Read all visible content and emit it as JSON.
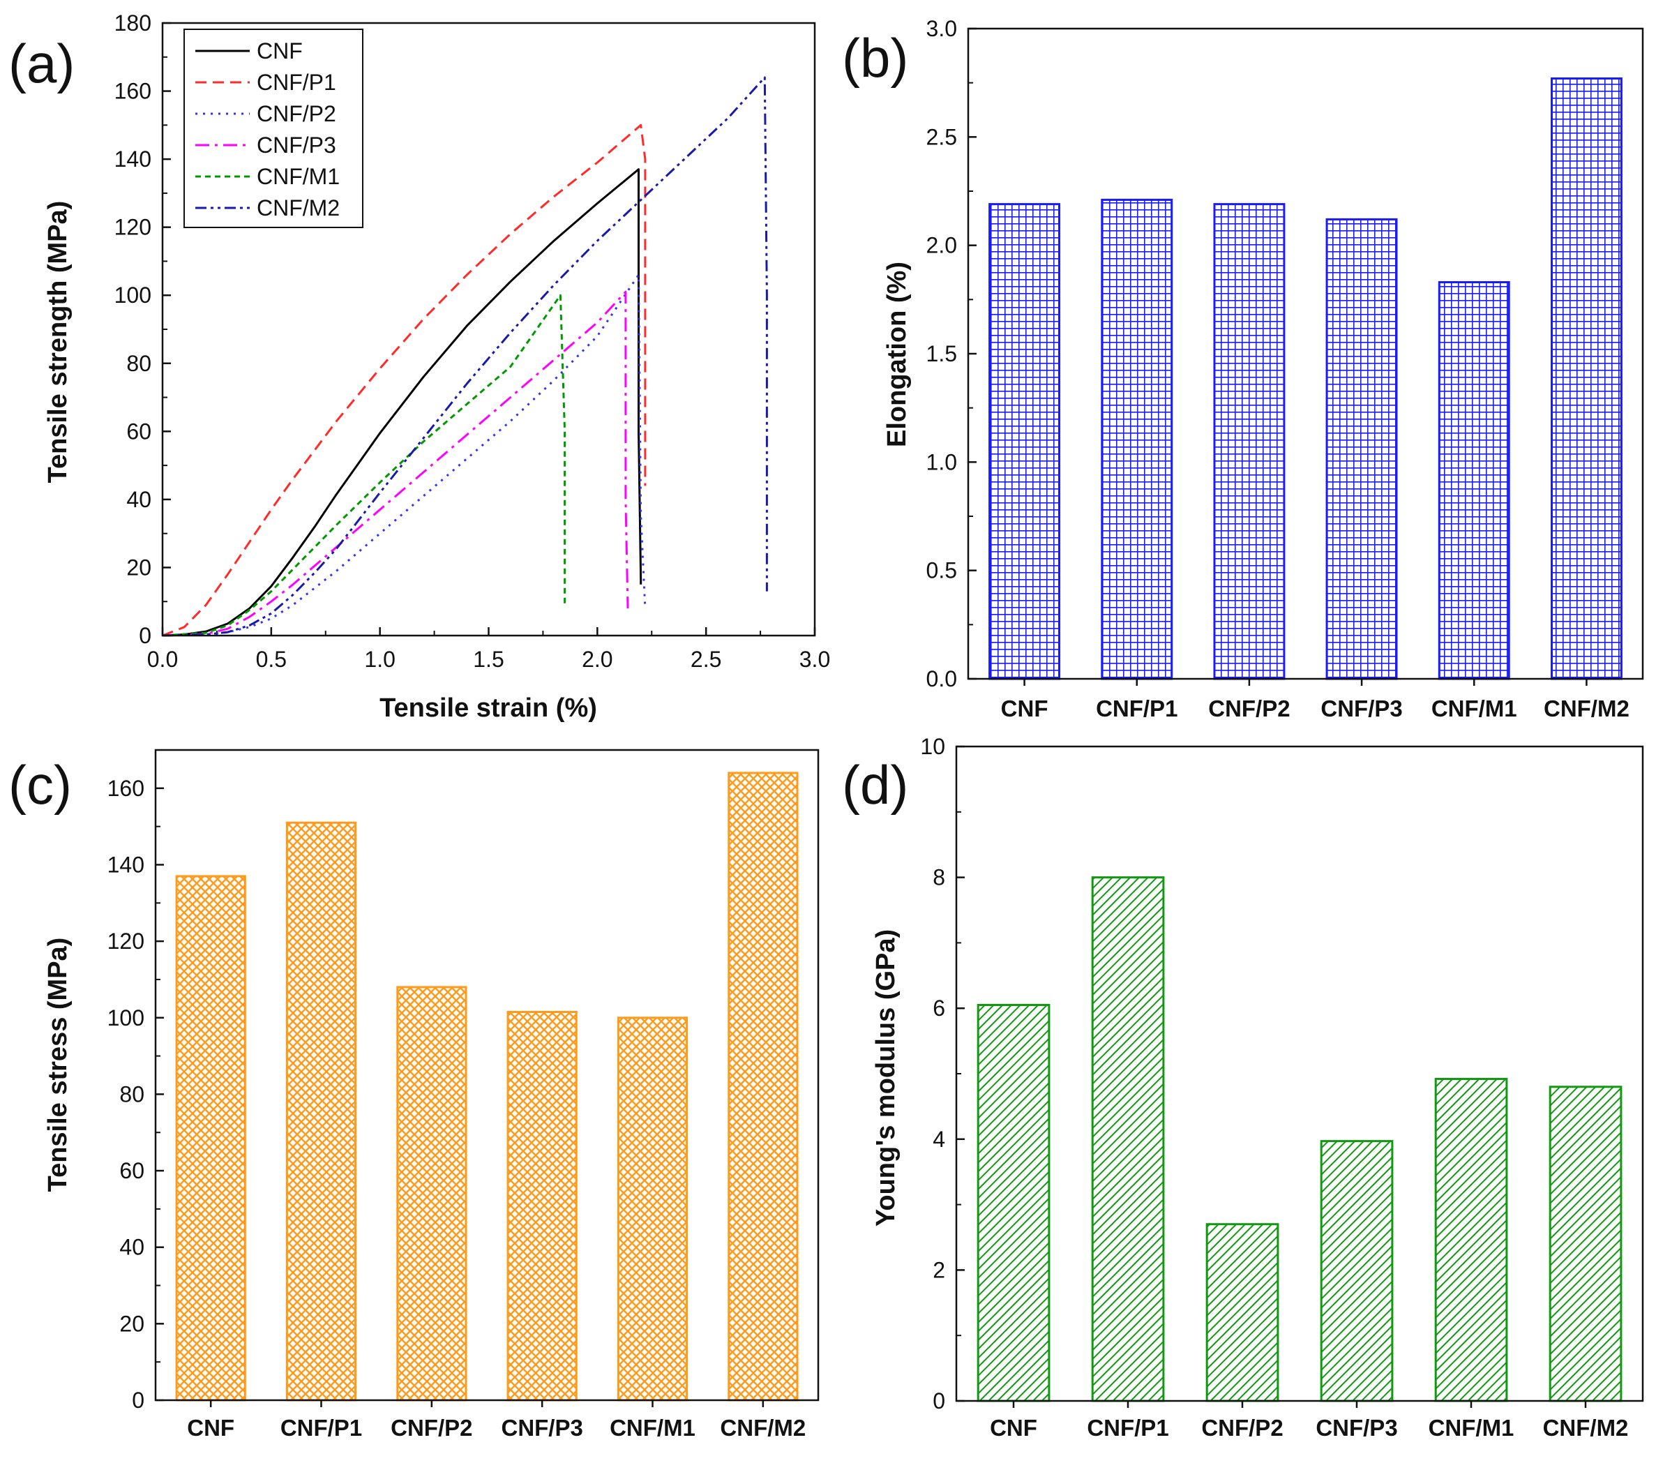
{
  "chart_data": [
    {
      "panel": "(a)",
      "type": "line",
      "xlabel": "Tensile strain (%)",
      "ylabel": "Tensile strength (MPa)",
      "xlim": [
        0,
        3.0
      ],
      "ylim": [
        0,
        180
      ],
      "xticks": [
        "0.0",
        "0.5",
        "1.0",
        "1.5",
        "2.0",
        "2.5",
        "3.0"
      ],
      "yticks": [
        "0",
        "20",
        "40",
        "60",
        "80",
        "100",
        "120",
        "140",
        "160",
        "180"
      ],
      "legend_position": "top-left",
      "series": [
        {
          "name": "CNF",
          "color": "#000000",
          "dash": "solid",
          "x": [
            0.0,
            0.1,
            0.2,
            0.3,
            0.4,
            0.5,
            0.6,
            0.7,
            0.8,
            0.9,
            1.0,
            1.2,
            1.4,
            1.6,
            1.8,
            2.0,
            2.19,
            2.19,
            2.2,
            2.2
          ],
          "y": [
            0,
            0.3,
            1.2,
            3.5,
            8,
            14.5,
            23,
            32,
            41.5,
            50.5,
            59.5,
            76,
            91,
            104,
            116,
            127,
            137,
            60,
            16,
            15
          ]
        },
        {
          "name": "CNF/P1",
          "color": "#ff2a2a",
          "dash": "dashed",
          "x": [
            0.0,
            0.1,
            0.2,
            0.3,
            0.4,
            0.5,
            0.6,
            0.8,
            1.0,
            1.2,
            1.4,
            1.6,
            1.8,
            2.0,
            2.2,
            2.22,
            2.22
          ],
          "y": [
            0,
            2.5,
            9,
            18,
            27.5,
            37,
            46,
            63,
            78.5,
            93,
            106,
            118,
            129,
            139,
            150,
            140,
            44
          ]
        },
        {
          "name": "CNF/P2",
          "color": "#3030ff",
          "dash": "dotted",
          "x": [
            0.0,
            0.2,
            0.3,
            0.4,
            0.5,
            0.6,
            0.7,
            0.8,
            1.0,
            1.2,
            1.4,
            1.6,
            1.8,
            2.0,
            2.19,
            2.2,
            2.22
          ],
          "y": [
            0,
            0.3,
            1,
            2.5,
            5,
            9,
            14,
            19,
            30,
            41,
            52,
            63,
            75,
            88,
            106,
            35,
            8
          ]
        },
        {
          "name": "CNF/P3",
          "color": "#ff00ff",
          "dash": "dashdot",
          "x": [
            0.0,
            0.2,
            0.3,
            0.4,
            0.5,
            0.6,
            0.8,
            1.0,
            1.2,
            1.4,
            1.6,
            1.8,
            2.0,
            2.13,
            2.13,
            2.14
          ],
          "y": [
            0,
            0.5,
            2,
            5.5,
            10,
            15,
            26,
            37,
            48,
            59,
            70,
            81,
            92,
            101,
            40,
            8
          ]
        },
        {
          "name": "CNF/M1",
          "color": "#009900",
          "dash": "shortdash",
          "x": [
            0.0,
            0.2,
            0.3,
            0.4,
            0.5,
            0.6,
            0.7,
            0.8,
            1.0,
            1.2,
            1.4,
            1.6,
            1.83,
            1.85,
            1.85
          ],
          "y": [
            0,
            0.8,
            3,
            7.5,
            13,
            19.5,
            26,
            32.5,
            45,
            57,
            68,
            79,
            100,
            60,
            9
          ]
        },
        {
          "name": "CNF/M2",
          "color": "#1a1aaa",
          "dash": "dashdotdot",
          "x": [
            0.0,
            0.2,
            0.3,
            0.4,
            0.5,
            0.6,
            0.7,
            0.8,
            1.0,
            1.2,
            1.4,
            1.6,
            1.8,
            2.0,
            2.2,
            2.4,
            2.6,
            2.77,
            2.78,
            2.78
          ],
          "y": [
            0,
            0.3,
            1,
            3,
            6.5,
            12,
            18.5,
            25.5,
            42,
            58,
            74,
            89,
            103,
            116,
            128,
            140,
            152,
            164,
            100,
            13
          ]
        }
      ]
    },
    {
      "panel": "(b)",
      "type": "bar",
      "pattern": "grid",
      "color": "#1a1aff",
      "ylabel": "Elongation (%)",
      "ylim": [
        0,
        3.0
      ],
      "yticks": [
        "0.0",
        "0.5",
        "1.0",
        "1.5",
        "2.0",
        "2.5",
        "3.0"
      ],
      "categories": [
        "CNF",
        "CNF/P1",
        "CNF/P2",
        "CNF/P3",
        "CNF/M1",
        "CNF/M2"
      ],
      "values": [
        2.19,
        2.21,
        2.19,
        2.12,
        1.83,
        2.77
      ]
    },
    {
      "panel": "(c)",
      "type": "bar",
      "pattern": "crosshatch",
      "color": "#ff9a1a",
      "ylabel": "Tensile stress (MPa)",
      "ylim": [
        0,
        170
      ],
      "yticks": [
        "0",
        "20",
        "40",
        "60",
        "80",
        "100",
        "120",
        "140",
        "160"
      ],
      "categories": [
        "CNF",
        "CNF/P1",
        "CNF/P2",
        "CNF/P3",
        "CNF/M1",
        "CNF/M2"
      ],
      "values": [
        137,
        151,
        108,
        101.5,
        100,
        164
      ]
    },
    {
      "panel": "(d)",
      "type": "bar",
      "pattern": "diagonal",
      "color": "#119911",
      "ylabel": "Young's modulus (GPa)",
      "ylim": [
        0,
        10
      ],
      "yticks": [
        "0",
        "2",
        "4",
        "6",
        "8",
        "10"
      ],
      "categories": [
        "CNF",
        "CNF/P1",
        "CNF/P2",
        "CNF/P3",
        "CNF/M1",
        "CNF/M2"
      ],
      "values": [
        6.05,
        8.0,
        2.7,
        3.97,
        4.92,
        4.8
      ]
    }
  ]
}
